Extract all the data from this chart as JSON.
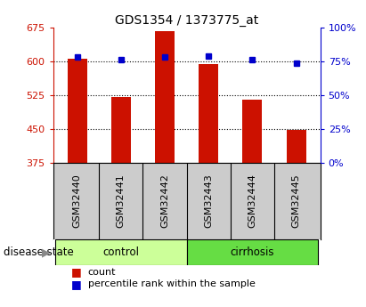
{
  "title": "GDS1354 / 1373775_at",
  "samples": [
    "GSM32440",
    "GSM32441",
    "GSM32442",
    "GSM32443",
    "GSM32444",
    "GSM32445"
  ],
  "counts": [
    605,
    520,
    668,
    595,
    515,
    448
  ],
  "percentiles": [
    78,
    76,
    78,
    79,
    76,
    74
  ],
  "groups": [
    "control",
    "control",
    "control",
    "cirrhosis",
    "cirrhosis",
    "cirrhosis"
  ],
  "ylim_left": [
    375,
    675
  ],
  "ylim_right": [
    0,
    100
  ],
  "yticks_left": [
    375,
    450,
    525,
    600,
    675
  ],
  "yticks_right": [
    0,
    25,
    50,
    75,
    100
  ],
  "bar_color": "#CC1100",
  "dot_color": "#0000CC",
  "control_color": "#CCFF99",
  "cirrhosis_color": "#66DD44",
  "sample_bg_color": "#CCCCCC",
  "axis_color_left": "#CC1100",
  "axis_color_right": "#0000CC",
  "title_fontsize": 10,
  "tick_fontsize": 8,
  "label_fontsize": 8.5,
  "legend_fontsize": 8,
  "bar_width": 0.45,
  "group_label_fontsize": 8.5,
  "disease_state_fontsize": 8.5
}
